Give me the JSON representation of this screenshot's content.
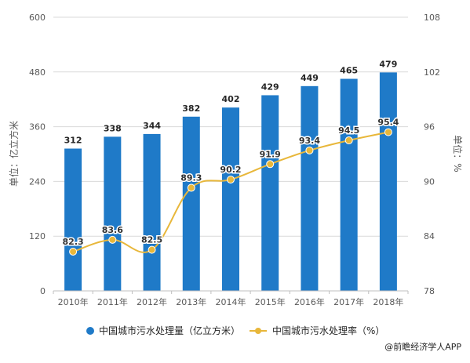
{
  "colors": {
    "bar": "#1f7ac8",
    "line": "#e8b73a",
    "grid": "#d9d9d9",
    "axis_text": "#595959"
  },
  "chart_data": {
    "type": "bar",
    "categories": [
      "2010年",
      "2011年",
      "2012年",
      "2013年",
      "2014年",
      "2015年",
      "2016年",
      "2017年",
      "2018年"
    ],
    "series": [
      {
        "name": "中国城市污水处理量（亿立方米）",
        "type": "bar",
        "axis": "left",
        "values": [
          312,
          338,
          344,
          382,
          402,
          429,
          449,
          465,
          479
        ]
      },
      {
        "name": "中国城市污水处理率（%）",
        "type": "line",
        "axis": "right",
        "values": [
          82.3,
          83.6,
          82.5,
          89.3,
          90.2,
          91.9,
          93.4,
          94.5,
          95.4
        ]
      }
    ],
    "ylabel_left": "单位：亿立方米",
    "ylabel_right": "单位：%",
    "ylim_left": [
      0,
      600
    ],
    "yticks_left": [
      0,
      120,
      240,
      360,
      480,
      600
    ],
    "ylim_right": [
      78,
      108
    ],
    "yticks_right": [
      78,
      84,
      90,
      96,
      102,
      108
    ],
    "grid": true,
    "legend_position": "bottom"
  },
  "source": "@前瞻经济学人APP"
}
